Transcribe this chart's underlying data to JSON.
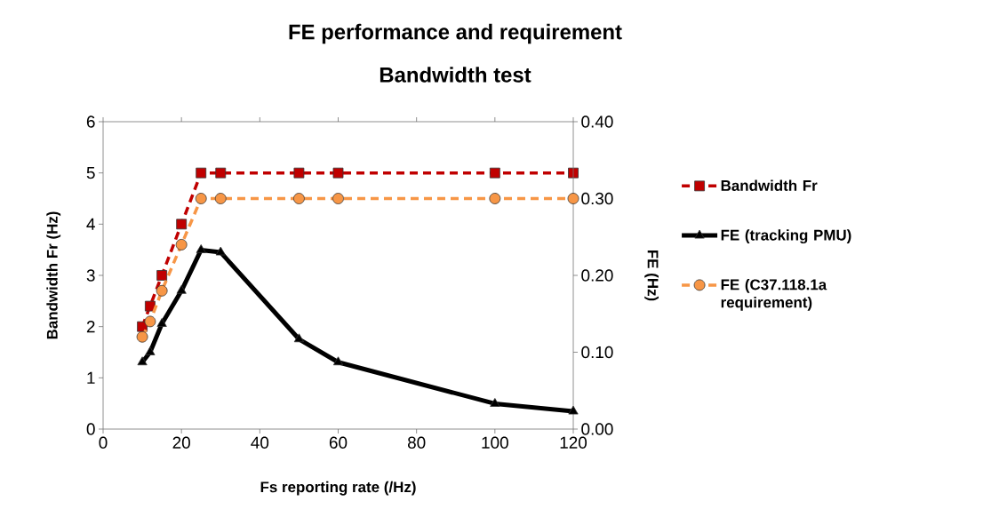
{
  "chart_data": {
    "type": "line",
    "title": "FE performance and requirement",
    "subtitle": "Bandwidth test",
    "xlabel": "Fs reporting rate (/Hz)",
    "ylabel": "Bandwidth Fr (Hz)",
    "y2label": "FE (Hz)",
    "x": [
      10,
      12,
      15,
      20,
      25,
      30,
      50,
      60,
      100,
      120
    ],
    "series": [
      {
        "name": "Bandwidth Fr",
        "color": "#c00000",
        "marker": "square",
        "line_style": "dashed",
        "values": [
          2,
          2.4,
          3,
          4,
          5,
          5,
          5,
          5,
          5,
          5
        ]
      },
      {
        "name": "FE (tracking PMU)",
        "color": "#000000",
        "marker": "triangle",
        "line_style": "solid",
        "axis": "y2",
        "values": [
          0.087,
          0.1,
          0.137,
          0.18,
          0.233,
          0.23,
          0.117,
          0.087,
          0.033,
          0.023
        ]
      },
      {
        "name": "FE (C37.118.1a requirement)",
        "color": "#f79646",
        "marker": "circle",
        "line_style": "dashed",
        "axis": "y2",
        "values": [
          0.12,
          0.14,
          0.18,
          0.24,
          0.3,
          0.3,
          0.3,
          0.3,
          0.3,
          0.3
        ]
      }
    ],
    "xlim": [
      0,
      120
    ],
    "xticks": [
      0,
      20,
      40,
      60,
      80,
      100,
      120
    ],
    "ylim": [
      0,
      6
    ],
    "yticks": [
      0,
      1,
      2,
      3,
      4,
      5,
      6
    ],
    "y2lim": [
      0,
      0.4
    ],
    "y2ticks": [
      {
        "value": 0,
        "label": "0.00"
      },
      {
        "value": 0.1,
        "label": "0.10"
      },
      {
        "value": 0.2,
        "label": "0.20"
      },
      {
        "value": 0.3,
        "label": "0.30"
      },
      {
        "value": 0.4,
        "label": "0.40"
      }
    ],
    "grid": false,
    "legend": "right"
  }
}
